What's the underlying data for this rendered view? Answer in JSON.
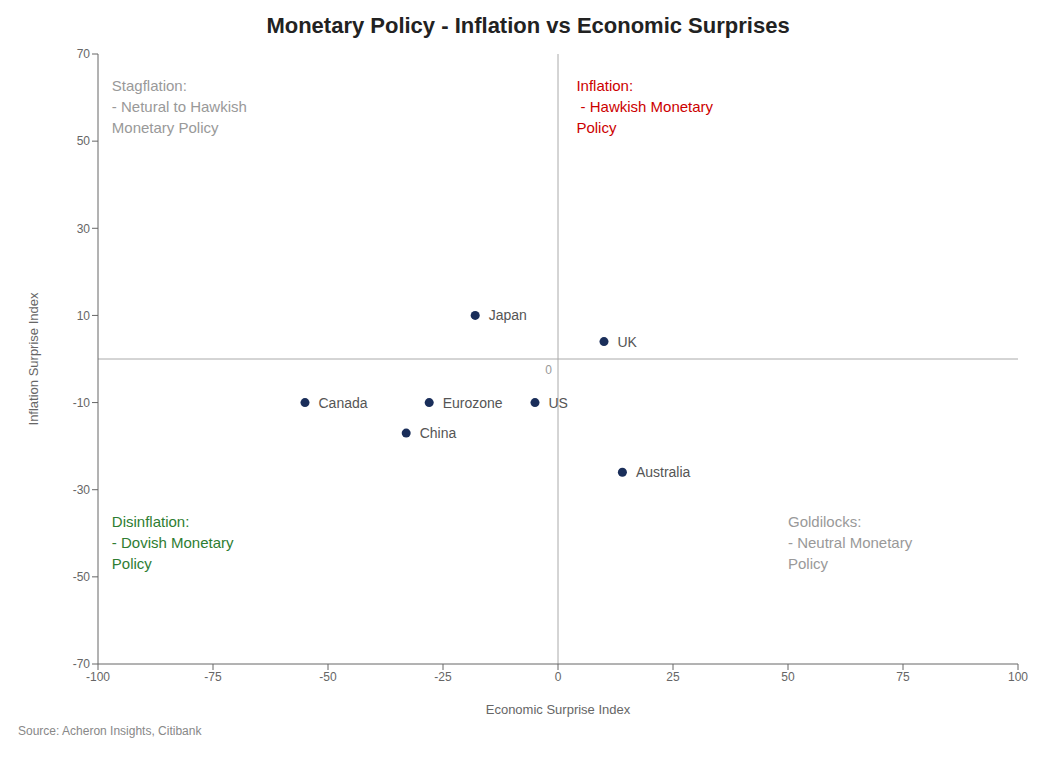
{
  "chart_data": {
    "type": "scatter",
    "title": "Monetary Policy - Inflation vs Economic Surprises",
    "xlabel": "Economic Surprise Index",
    "ylabel": "Inflation Surprise Index",
    "xlim": [
      -100,
      100
    ],
    "ylim": [
      -70,
      70
    ],
    "xticks": [
      -100,
      -75,
      -50,
      -25,
      0,
      25,
      50,
      75,
      100
    ],
    "yticks": [
      -70,
      -50,
      -30,
      -10,
      10,
      30,
      50,
      70
    ],
    "grid": false,
    "color": "#1a2e5a",
    "points": [
      {
        "name": "Japan",
        "x": -18,
        "y": 10
      },
      {
        "name": "UK",
        "x": 10,
        "y": 4
      },
      {
        "name": "US",
        "x": -5,
        "y": -10
      },
      {
        "name": "Eurozone",
        "x": -28,
        "y": -10
      },
      {
        "name": "China",
        "x": -33,
        "y": -17
      },
      {
        "name": "Canada",
        "x": -55,
        "y": -10
      },
      {
        "name": "Australia",
        "x": 14,
        "y": -26
      }
    ],
    "annotations": [
      {
        "text": "Stagflation:\n- Netural to Hawkish\nMonetary Policy",
        "x": -97,
        "y": 65,
        "color": "#999999"
      },
      {
        "text": "Inflation:\n - Hawkish Monetary\nPolicy",
        "x": 4,
        "y": 65,
        "color": "#cc0000"
      },
      {
        "text": "Disinflation:\n- Dovish Monetary\nPolicy",
        "x": -97,
        "y": -35,
        "color": "#2e7d32"
      },
      {
        "text": "Goldilocks:\n- Neutral Monetary\nPolicy",
        "x": 50,
        "y": -35,
        "color": "#999999"
      },
      {
        "text": "0",
        "x": 0,
        "y": 0,
        "color": "#999999"
      }
    ],
    "source": "Source: Acheron Insights, Citibank"
  }
}
